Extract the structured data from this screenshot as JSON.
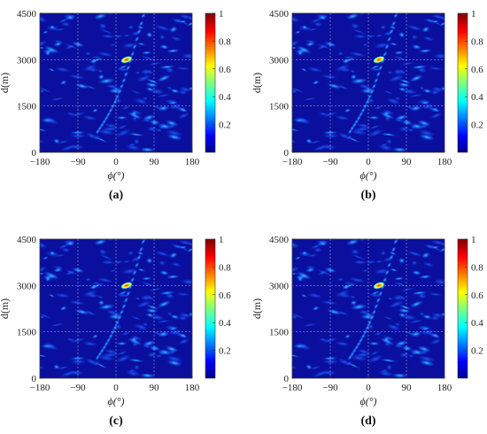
{
  "chart_data": [
    {
      "type": "heatmap",
      "panel_label": "(a)",
      "xlabel": "ϕ(°)",
      "ylabel": "d(m)",
      "xlim": [
        -180,
        180
      ],
      "ylim": [
        0,
        4500
      ],
      "xticks": [
        "−180",
        "−90",
        "0",
        "90",
        "180"
      ],
      "yticks": [
        "0",
        "1500",
        "3000",
        "4500"
      ],
      "colorbar_ticks": [
        "0.2",
        "0.4",
        "0.6",
        "0.8",
        "1"
      ],
      "colorbar_range": [
        0,
        1
      ],
      "peak": {
        "x": 25,
        "y": 3000,
        "value": 1
      },
      "grid": true,
      "colormap": "jet"
    },
    {
      "type": "heatmap",
      "panel_label": "(b)",
      "xlabel": "ϕ(°)",
      "ylabel": "d(m)",
      "xlim": [
        -180,
        180
      ],
      "ylim": [
        0,
        4500
      ],
      "xticks": [
        "−180",
        "−90",
        "0",
        "90",
        "180"
      ],
      "yticks": [
        "0",
        "1500",
        "3000",
        "4500"
      ],
      "colorbar_ticks": [
        "0.2",
        "0.4",
        "0.6",
        "0.8",
        "1"
      ],
      "colorbar_range": [
        0,
        1
      ],
      "peak": {
        "x": 25,
        "y": 3000,
        "value": 1
      },
      "grid": true,
      "colormap": "jet"
    },
    {
      "type": "heatmap",
      "panel_label": "(c)",
      "xlabel": "ϕ(°)",
      "ylabel": "d(m)",
      "xlim": [
        -180,
        180
      ],
      "ylim": [
        0,
        4500
      ],
      "xticks": [
        "−180",
        "−90",
        "0",
        "90",
        "180"
      ],
      "yticks": [
        "0",
        "1500",
        "3000",
        "4500"
      ],
      "colorbar_ticks": [
        "0.2",
        "0.4",
        "0.6",
        "0.8",
        "1"
      ],
      "colorbar_range": [
        0,
        1
      ],
      "peak": {
        "x": 25,
        "y": 3000,
        "value": 1
      },
      "grid": true,
      "colormap": "jet"
    },
    {
      "type": "heatmap",
      "panel_label": "(d)",
      "xlabel": "ϕ(°)",
      "ylabel": "d(m)",
      "xlim": [
        -180,
        180
      ],
      "ylim": [
        0,
        4500
      ],
      "xticks": [
        "−180",
        "−90",
        "0",
        "90",
        "180"
      ],
      "yticks": [
        "0",
        "1500",
        "3000",
        "4500"
      ],
      "colorbar_ticks": [
        "0.2",
        "0.4",
        "0.6",
        "0.8",
        "1"
      ],
      "colorbar_range": [
        0,
        1
      ],
      "peak": {
        "x": 25,
        "y": 3000,
        "value": 1
      },
      "grid": true,
      "colormap": "jet"
    }
  ],
  "colors": {
    "background": "#0a0f9e",
    "gridline": "#8f96c8",
    "peak_core": "#ff1a00"
  }
}
